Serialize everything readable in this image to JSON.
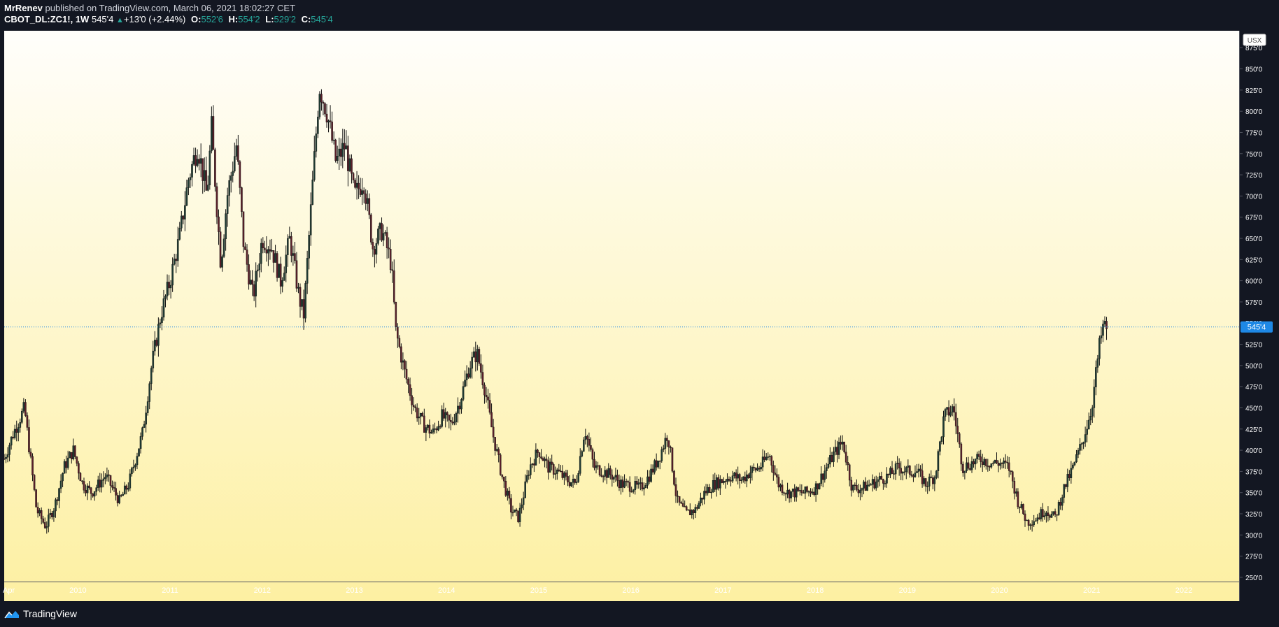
{
  "header": {
    "author": "MrRenev",
    "published_text": "published on TradingView.com, March 06, 2021 18:02:27 CET",
    "symbol": "CBOT_DL:ZC1!, 1W",
    "last": "545'4",
    "change": "+13'0 (+2.44%)",
    "o_label": "O:",
    "o_val": "552'6",
    "h_label": "H:",
    "h_val": "554'2",
    "l_label": "L:",
    "l_val": "529'2",
    "c_label": "C:",
    "c_val": "545'4"
  },
  "footer": {
    "brand": "TradingView",
    "logo_icon": "tradingview-logo-icon"
  },
  "colors": {
    "bg": "#131722",
    "up": "#26a69a",
    "accent": "#1e88e5",
    "candle_up": "#1f3b33",
    "candle_down": "#5a1f2a",
    "wick": "#111111",
    "gradient_top": "#fffefb",
    "gradient_bottom": "#fdf0a2"
  },
  "chart_data": {
    "type": "candlestick",
    "interval": "1W",
    "symbol": "CBOT_DL:ZC1!",
    "currency_label": "USX",
    "last_price_label": "545'4",
    "last_price": 545.5,
    "price_line": "dotted",
    "ylim": [
      245,
      895
    ],
    "y_ticks": [
      "250'0",
      "275'0",
      "300'0",
      "325'0",
      "350'0",
      "375'0",
      "400'0",
      "425'0",
      "450'0",
      "475'0",
      "500'0",
      "525'0",
      "550'0",
      "575'0",
      "600'0",
      "625'0",
      "650'0",
      "675'0",
      "700'0",
      "725'0",
      "750'0",
      "775'0",
      "800'0",
      "825'0",
      "850'0",
      "875'0"
    ],
    "y_tick_values": [
      250,
      275,
      300,
      325,
      350,
      375,
      400,
      425,
      450,
      475,
      500,
      525,
      550,
      575,
      600,
      625,
      650,
      675,
      700,
      725,
      750,
      775,
      800,
      825,
      850,
      875
    ],
    "x_ticks": [
      "Apr",
      "2010",
      "2011",
      "2012",
      "2013",
      "2014",
      "2015",
      "2016",
      "2017",
      "2018",
      "2019",
      "2020",
      "2021",
      "2022"
    ],
    "x_tick_values": [
      2009.25,
      2010,
      2011,
      2012,
      2013,
      2014,
      2015,
      2016,
      2017,
      2018,
      2019,
      2020,
      2021,
      2022
    ],
    "xlim": [
      2009.2,
      2022.6
    ],
    "close_path": [
      [
        2009.2,
        390
      ],
      [
        2009.3,
        420
      ],
      [
        2009.42,
        450
      ],
      [
        2009.55,
        330
      ],
      [
        2009.65,
        310
      ],
      [
        2009.75,
        335
      ],
      [
        2009.85,
        380
      ],
      [
        2009.95,
        400
      ],
      [
        2010.05,
        360
      ],
      [
        2010.15,
        350
      ],
      [
        2010.3,
        370
      ],
      [
        2010.45,
        340
      ],
      [
        2010.55,
        360
      ],
      [
        2010.7,
        420
      ],
      [
        2010.8,
        500
      ],
      [
        2010.9,
        560
      ],
      [
        2011.0,
        600
      ],
      [
        2011.1,
        650
      ],
      [
        2011.2,
        720
      ],
      [
        2011.3,
        760
      ],
      [
        2011.4,
        700
      ],
      [
        2011.45,
        780
      ],
      [
        2011.55,
        620
      ],
      [
        2011.62,
        700
      ],
      [
        2011.72,
        760
      ],
      [
        2011.8,
        640
      ],
      [
        2011.9,
        580
      ],
      [
        2012.0,
        650
      ],
      [
        2012.1,
        640
      ],
      [
        2012.2,
        600
      ],
      [
        2012.3,
        650
      ],
      [
        2012.4,
        580
      ],
      [
        2012.45,
        560
      ],
      [
        2012.55,
        720
      ],
      [
        2012.62,
        830
      ],
      [
        2012.7,
        800
      ],
      [
        2012.8,
        740
      ],
      [
        2012.9,
        760
      ],
      [
        2013.0,
        700
      ],
      [
        2013.1,
        720
      ],
      [
        2013.2,
        640
      ],
      [
        2013.3,
        660
      ],
      [
        2013.4,
        620
      ],
      [
        2013.45,
        540
      ],
      [
        2013.55,
        490
      ],
      [
        2013.65,
        450
      ],
      [
        2013.75,
        430
      ],
      [
        2013.85,
        420
      ],
      [
        2013.95,
        440
      ],
      [
        2014.05,
        430
      ],
      [
        2014.15,
        460
      ],
      [
        2014.25,
        500
      ],
      [
        2014.33,
        515
      ],
      [
        2014.42,
        470
      ],
      [
        2014.5,
        420
      ],
      [
        2014.6,
        370
      ],
      [
        2014.7,
        330
      ],
      [
        2014.78,
        320
      ],
      [
        2014.9,
        380
      ],
      [
        2015.0,
        400
      ],
      [
        2015.1,
        380
      ],
      [
        2015.2,
        375
      ],
      [
        2015.3,
        365
      ],
      [
        2015.4,
        360
      ],
      [
        2015.5,
        425
      ],
      [
        2015.6,
        380
      ],
      [
        2015.7,
        375
      ],
      [
        2015.8,
        370
      ],
      [
        2015.9,
        360
      ],
      [
        2016.0,
        358
      ],
      [
        2016.1,
        355
      ],
      [
        2016.2,
        370
      ],
      [
        2016.3,
        390
      ],
      [
        2016.4,
        420
      ],
      [
        2016.5,
        340
      ],
      [
        2016.6,
        325
      ],
      [
        2016.7,
        330
      ],
      [
        2016.8,
        350
      ],
      [
        2016.9,
        360
      ],
      [
        2017.0,
        365
      ],
      [
        2017.1,
        370
      ],
      [
        2017.2,
        365
      ],
      [
        2017.3,
        375
      ],
      [
        2017.4,
        380
      ],
      [
        2017.5,
        395
      ],
      [
        2017.6,
        360
      ],
      [
        2017.7,
        350
      ],
      [
        2017.8,
        350
      ],
      [
        2017.9,
        350
      ],
      [
        2018.0,
        355
      ],
      [
        2018.1,
        375
      ],
      [
        2018.2,
        395
      ],
      [
        2018.3,
        410
      ],
      [
        2018.4,
        355
      ],
      [
        2018.5,
        355
      ],
      [
        2018.6,
        360
      ],
      [
        2018.7,
        365
      ],
      [
        2018.8,
        370
      ],
      [
        2018.9,
        380
      ],
      [
        2019.0,
        375
      ],
      [
        2019.1,
        375
      ],
      [
        2019.2,
        360
      ],
      [
        2019.3,
        370
      ],
      [
        2019.4,
        440
      ],
      [
        2019.5,
        450
      ],
      [
        2019.6,
        380
      ],
      [
        2019.7,
        385
      ],
      [
        2019.8,
        390
      ],
      [
        2019.9,
        385
      ],
      [
        2020.0,
        385
      ],
      [
        2020.1,
        380
      ],
      [
        2020.2,
        340
      ],
      [
        2020.3,
        315
      ],
      [
        2020.4,
        320
      ],
      [
        2020.5,
        330
      ],
      [
        2020.6,
        320
      ],
      [
        2020.7,
        355
      ],
      [
        2020.8,
        380
      ],
      [
        2020.9,
        410
      ],
      [
        2021.0,
        450
      ],
      [
        2021.08,
        520
      ],
      [
        2021.12,
        545
      ],
      [
        2021.17,
        545.5
      ]
    ]
  }
}
